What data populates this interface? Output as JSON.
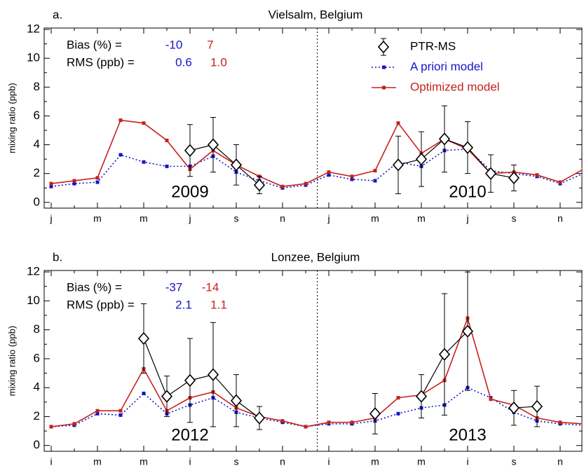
{
  "chart_data": [
    {
      "type": "line",
      "panel_label": "a.",
      "title": "Vielsalm, Belgium",
      "y_label": "mixing ratio (ppb)",
      "categories": [
        "j",
        null,
        "m",
        null,
        "m",
        null,
        "j",
        null,
        "s",
        null,
        "n",
        null,
        "j",
        null,
        "m",
        null,
        "m",
        null,
        "j",
        null,
        "s",
        null,
        "n",
        null
      ],
      "ylim": [
        -0.4,
        12.1
      ],
      "yticks": [
        0,
        2,
        4,
        6,
        8,
        10,
        12
      ],
      "year_labels": [
        "2009",
        "2010"
      ],
      "bias": {
        "label": "Bias (%) =",
        "values": [
          -10,
          7
        ]
      },
      "rms": {
        "label": "RMS (ppb) =",
        "values": [
          0.6,
          1.0
        ],
        "value_labels": [
          "0.6",
          "1.0"
        ]
      },
      "legend": "upper right",
      "series": [
        {
          "name": "PTR-MS",
          "color": "#000000",
          "values": [
            null,
            null,
            null,
            null,
            null,
            null,
            3.6,
            4.0,
            2.6,
            1.2,
            null,
            null,
            null,
            null,
            null,
            2.6,
            3.0,
            4.4,
            3.8,
            2.0,
            1.7,
            null,
            null,
            null
          ],
          "errors": [
            null,
            null,
            null,
            null,
            null,
            null,
            1.8,
            1.9,
            1.4,
            0.6,
            null,
            null,
            null,
            null,
            null,
            2.0,
            1.9,
            2.3,
            1.8,
            1.3,
            0.9,
            null,
            null,
            null
          ]
        },
        {
          "name": "A priori model",
          "color": "#1515c8",
          "values": [
            1.1,
            1.3,
            1.4,
            3.3,
            2.8,
            2.5,
            2.5,
            3.2,
            2.1,
            1.5,
            1.0,
            1.2,
            1.9,
            1.6,
            1.5,
            2.8,
            2.5,
            3.6,
            3.7,
            2.2,
            2.0,
            1.8,
            1.3,
            2.0
          ]
        },
        {
          "name": "Optimized model",
          "color": "#c4221c",
          "values": [
            1.3,
            1.5,
            1.7,
            5.7,
            5.5,
            4.3,
            2.3,
            3.6,
            2.6,
            1.8,
            1.1,
            1.3,
            2.1,
            1.8,
            2.2,
            5.5,
            3.4,
            4.4,
            3.7,
            2.0,
            2.1,
            1.9,
            1.4,
            2.3
          ]
        }
      ]
    },
    {
      "type": "line",
      "panel_label": "b.",
      "title": "Lonzee, Belgium",
      "y_label": "mixing ratio (ppb)",
      "categories": [
        "i",
        null,
        "m",
        null,
        "m",
        null,
        "i",
        null,
        "s",
        null,
        "n",
        null,
        "i",
        null,
        "m",
        null,
        "m",
        null,
        "i",
        null,
        "s",
        null,
        "n",
        null
      ],
      "ylim": [
        -0.4,
        12.1
      ],
      "yticks": [
        0,
        2,
        4,
        6,
        8,
        10,
        12
      ],
      "year_labels": [
        "2012",
        "2013"
      ],
      "bias": {
        "label": "Bias (%) =",
        "values": [
          -37,
          -14
        ]
      },
      "rms": {
        "label": "RMS (ppb) =",
        "values": [
          2.1,
          1.1
        ]
      },
      "series": [
        {
          "name": "PTR-MS",
          "color": "#000000",
          "values": [
            null,
            null,
            null,
            null,
            7.4,
            3.4,
            4.5,
            4.9,
            3.1,
            1.9,
            null,
            null,
            null,
            null,
            2.2,
            null,
            3.4,
            6.3,
            7.9,
            null,
            2.6,
            2.7,
            null,
            null
          ],
          "errors": [
            null,
            null,
            null,
            null,
            2.4,
            1.4,
            2.9,
            3.6,
            1.8,
            0.8,
            null,
            null,
            null,
            null,
            1.4,
            null,
            1.5,
            4.2,
            4.1,
            null,
            1.2,
            1.4,
            null,
            null
          ]
        },
        {
          "name": "A priori model",
          "color": "#1515c8",
          "values": [
            1.3,
            1.4,
            2.2,
            2.1,
            3.6,
            2.2,
            2.8,
            3.3,
            2.3,
            1.9,
            1.6,
            1.3,
            1.5,
            1.5,
            1.7,
            2.2,
            2.6,
            2.8,
            4.0,
            3.3,
            2.3,
            1.7,
            1.5,
            1.4
          ]
        },
        {
          "name": "Optimized model",
          "color": "#c4221c",
          "values": [
            1.3,
            1.5,
            2.4,
            2.4,
            5.3,
            2.4,
            3.3,
            3.7,
            2.6,
            2.0,
            1.7,
            1.3,
            1.6,
            1.6,
            1.9,
            3.3,
            3.5,
            4.5,
            8.8,
            3.2,
            2.8,
            1.9,
            1.6,
            1.5
          ]
        }
      ]
    }
  ]
}
